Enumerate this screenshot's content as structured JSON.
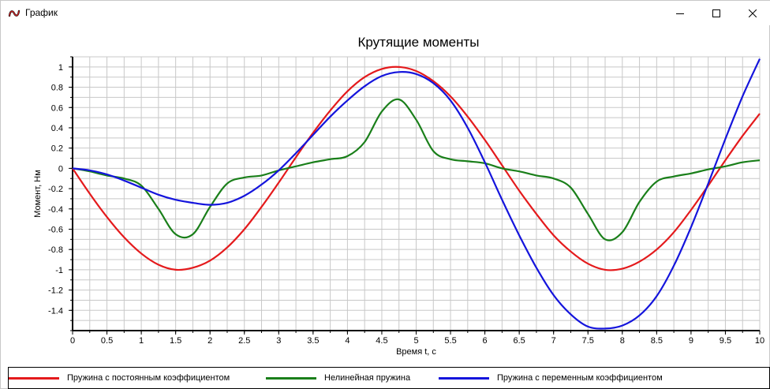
{
  "window": {
    "title": "График"
  },
  "colors": {
    "red": "#e41a1c",
    "green": "#1a7f1a",
    "blue": "#1414dc",
    "grid": "#c8c8c8"
  },
  "chart_data": {
    "type": "line",
    "title": "Крутящие моменты",
    "xlabel": "Время t, с",
    "ylabel": "Момент, Нм",
    "xlim": [
      0,
      10
    ],
    "ylim": [
      -1.6,
      1.1
    ],
    "grid": true,
    "legend_position": "bottom",
    "x_ticks": [
      0,
      0.5,
      1,
      1.5,
      2,
      2.5,
      3,
      3.5,
      4,
      4.5,
      5,
      5.5,
      6,
      6.5,
      7,
      7.5,
      8,
      8.5,
      9,
      9.5,
      10
    ],
    "x_tick_labels": [
      "0",
      "0.5",
      "1",
      "1.5",
      "2",
      "2.5",
      "3",
      "3.5",
      "4",
      "4.5",
      "5",
      "5.5",
      "6",
      "6.5",
      "7",
      "7.5",
      "8",
      "8.5",
      "9",
      "9.5",
      "10"
    ],
    "y_ticks": [
      1,
      0.8,
      0.6,
      0.4,
      0.2,
      0,
      -0.2,
      -0.4,
      -0.6,
      -0.8,
      -1,
      -1.2,
      -1.4
    ],
    "y_tick_labels": [
      "1",
      "0.8",
      "0.6",
      "0.4",
      "0.2",
      "0",
      "-0.2",
      "-0.4",
      "-0.6",
      "-0.8",
      "-1",
      "-1.2",
      "-1.4"
    ],
    "series": [
      {
        "name": "Пружина с постоянным коэффициентом",
        "color": "#e41a1c",
        "x": [
          0,
          0.25,
          0.5,
          0.75,
          1,
          1.25,
          1.5,
          1.75,
          2,
          2.25,
          2.5,
          2.75,
          3,
          3.25,
          3.5,
          3.75,
          4,
          4.25,
          4.5,
          4.75,
          5,
          5.25,
          5.5,
          5.75,
          6,
          6.25,
          6.5,
          6.75,
          7,
          7.25,
          7.5,
          7.75,
          8,
          8.25,
          8.5,
          8.75,
          9,
          9.25,
          9.5,
          9.75,
          10
        ],
        "y": [
          0,
          -0.25,
          -0.48,
          -0.68,
          -0.84,
          -0.95,
          -1.0,
          -0.98,
          -0.91,
          -0.78,
          -0.6,
          -0.38,
          -0.14,
          0.11,
          0.35,
          0.57,
          0.76,
          0.9,
          0.98,
          1.0,
          0.96,
          0.86,
          0.71,
          0.51,
          0.28,
          0.03,
          -0.22,
          -0.45,
          -0.66,
          -0.82,
          -0.94,
          -1.0,
          -0.99,
          -0.92,
          -0.8,
          -0.63,
          -0.41,
          -0.17,
          0.08,
          0.32,
          0.54
        ]
      },
      {
        "name": "Нелинейная пружина",
        "color": "#1a7f1a",
        "x": [
          0,
          0.25,
          0.5,
          0.75,
          1,
          1.25,
          1.5,
          1.75,
          2,
          2.25,
          2.5,
          2.75,
          3,
          3.25,
          3.5,
          3.75,
          4,
          4.25,
          4.5,
          4.75,
          5,
          5.25,
          5.5,
          5.75,
          6,
          6.25,
          6.5,
          6.75,
          7,
          7.25,
          7.5,
          7.75,
          8,
          8.25,
          8.5,
          8.75,
          9,
          9.25,
          9.5,
          9.75,
          10
        ],
        "y": [
          0,
          -0.03,
          -0.07,
          -0.1,
          -0.17,
          -0.4,
          -0.65,
          -0.65,
          -0.38,
          -0.15,
          -0.09,
          -0.07,
          -0.02,
          0.02,
          0.06,
          0.09,
          0.12,
          0.26,
          0.56,
          0.68,
          0.48,
          0.17,
          0.09,
          0.07,
          0.05,
          0.0,
          -0.03,
          -0.07,
          -0.1,
          -0.19,
          -0.45,
          -0.7,
          -0.63,
          -0.33,
          -0.13,
          -0.08,
          -0.05,
          -0.01,
          0.02,
          0.06,
          0.08
        ]
      },
      {
        "name": "Пружина с переменным коэффициентом",
        "color": "#1414dc",
        "x": [
          0,
          0.25,
          0.5,
          0.75,
          1,
          1.25,
          1.5,
          1.75,
          2,
          2.25,
          2.5,
          2.75,
          3,
          3.25,
          3.5,
          3.75,
          4,
          4.25,
          4.5,
          4.75,
          5,
          5.25,
          5.5,
          5.75,
          6,
          6.25,
          6.5,
          6.75,
          7,
          7.25,
          7.5,
          7.75,
          8,
          8.25,
          8.5,
          8.75,
          9,
          9.25,
          9.5,
          9.75,
          10
        ],
        "y": [
          0,
          -0.02,
          -0.06,
          -0.12,
          -0.19,
          -0.26,
          -0.31,
          -0.34,
          -0.36,
          -0.34,
          -0.27,
          -0.16,
          -0.02,
          0.15,
          0.33,
          0.51,
          0.67,
          0.81,
          0.91,
          0.95,
          0.93,
          0.84,
          0.67,
          0.4,
          0.06,
          -0.31,
          -0.66,
          -0.98,
          -1.25,
          -1.44,
          -1.56,
          -1.58,
          -1.55,
          -1.45,
          -1.26,
          -0.96,
          -0.58,
          -0.15,
          0.29,
          0.71,
          1.08
        ]
      }
    ]
  }
}
